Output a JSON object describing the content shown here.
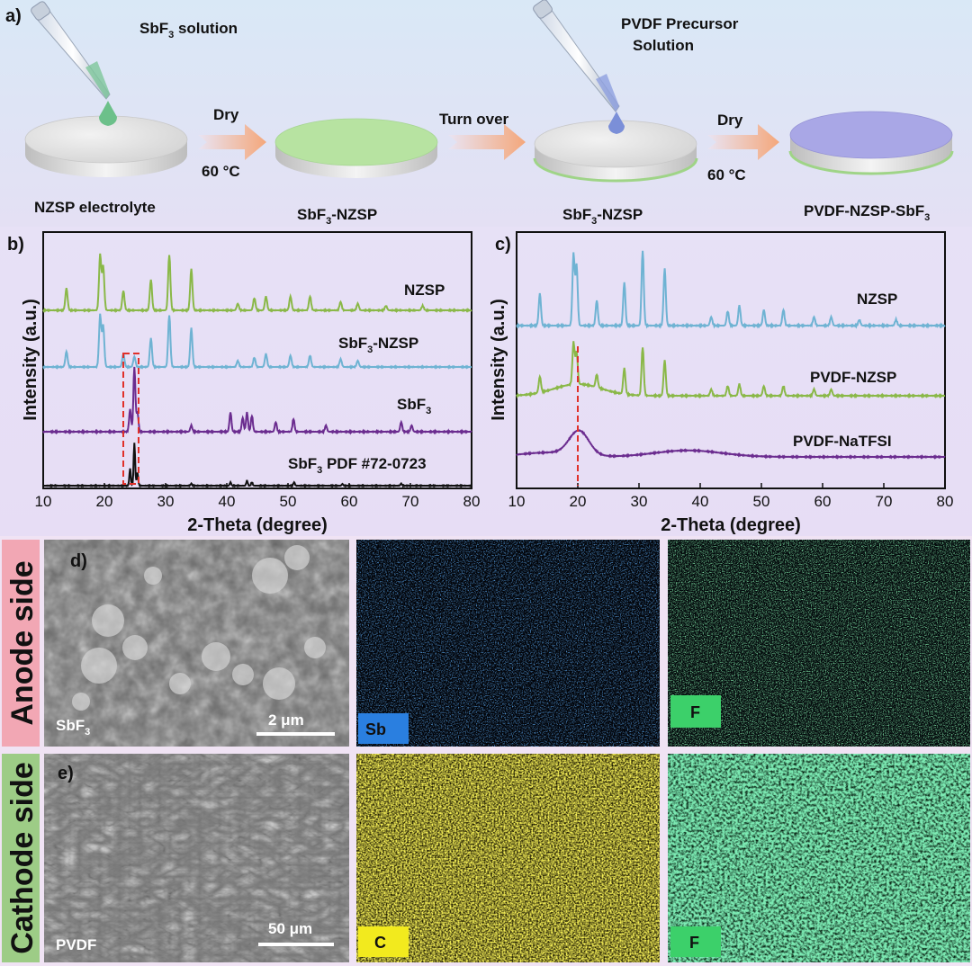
{
  "panel_a": {
    "label": "a)",
    "sbf3_solution": "SbF",
    "sbf3_solution_rest": " solution",
    "dry1": "Dry",
    "temp1": "60 °C",
    "turn_over": "Turn over",
    "pvdf_precursor_line1": "PVDF Precursor",
    "pvdf_precursor_line2": "Solution",
    "dry2": "Dry",
    "temp2": "60 °C",
    "nzsp_electrolyte": "NZSP electrolyte",
    "disc2_label": "SbF",
    "disc2_label_rest": "-NZSP",
    "disc3_label": "SbF",
    "disc3_label_rest": "-NZSP",
    "disc4_label": "PVDF-NZSP-SbF",
    "sub3": "3",
    "colors": {
      "disc_top": "#e4e4e4",
      "sbf3_coat": "#b7e3a1",
      "pvdf_coat": "#a9a7e6",
      "arrow": "#f2b38e",
      "drop_green": "#6cc08a",
      "drop_blue": "#7b8fd8"
    }
  },
  "chart_b": {
    "label": "b)",
    "ylabel": "Intensity (a.u.)",
    "xlabel": "2-Theta (degree)",
    "xticks": [
      "10",
      "20",
      "30",
      "40",
      "50",
      "60",
      "70",
      "80"
    ],
    "series_labels": [
      "NZSP",
      "SbF",
      "SbF",
      "SbF"
    ],
    "series_label_rest": [
      "",
      "-NZSP",
      "",
      " PDF #72-0723"
    ],
    "colors": [
      "#8ab848",
      "#6fb3d3",
      "#6b2c8f",
      "#111111"
    ]
  },
  "chart_c": {
    "label": "c)",
    "ylabel": "Intensity (a.u.)",
    "xlabel": "2-Theta (degree)",
    "xticks": [
      "10",
      "20",
      "30",
      "40",
      "50",
      "60",
      "70",
      "80"
    ],
    "series_labels": [
      "NZSP",
      "PVDF-NZSP",
      "PVDF-NaTFSI"
    ],
    "colors": [
      "#6fb3d3",
      "#8ab848",
      "#6b2c8f"
    ]
  },
  "chart_data": [
    {
      "type": "line",
      "xlim": [
        10,
        80
      ],
      "xlabel": "2-Theta (degree)",
      "ylabel": "Intensity (a.u.)",
      "series": [
        {
          "name": "NZSP",
          "peaks": [
            [
              13.8,
              0.4
            ],
            [
              19.3,
              1.0
            ],
            [
              19.8,
              0.8
            ],
            [
              23.1,
              0.35
            ],
            [
              27.6,
              0.55
            ],
            [
              30.6,
              1.0
            ],
            [
              34.2,
              0.75
            ],
            [
              41.8,
              0.12
            ],
            [
              44.5,
              0.22
            ],
            [
              46.4,
              0.25
            ],
            [
              50.4,
              0.25
            ],
            [
              53.6,
              0.25
            ],
            [
              58.6,
              0.15
            ],
            [
              61.4,
              0.12
            ],
            [
              66.0,
              0.08
            ],
            [
              72.0,
              0.08
            ]
          ]
        },
        {
          "name": "SbF3-NZSP",
          "peaks": [
            [
              13.8,
              0.3
            ],
            [
              19.3,
              1.0
            ],
            [
              19.8,
              0.8
            ],
            [
              23.1,
              0.25
            ],
            [
              24.9,
              0.2
            ],
            [
              27.6,
              0.55
            ],
            [
              30.6,
              1.0
            ],
            [
              34.2,
              0.75
            ],
            [
              41.8,
              0.12
            ],
            [
              44.5,
              0.18
            ],
            [
              46.4,
              0.25
            ],
            [
              50.4,
              0.22
            ],
            [
              53.6,
              0.22
            ],
            [
              58.6,
              0.15
            ],
            [
              61.4,
              0.12
            ]
          ]
        },
        {
          "name": "SbF3",
          "peaks": [
            [
              24.2,
              0.35
            ],
            [
              24.9,
              1.0
            ],
            [
              25.4,
              0.3
            ],
            [
              34.2,
              0.1
            ],
            [
              40.6,
              0.3
            ],
            [
              42.6,
              0.22
            ],
            [
              43.3,
              0.3
            ],
            [
              44.1,
              0.25
            ],
            [
              48.0,
              0.15
            ],
            [
              50.9,
              0.2
            ],
            [
              56.2,
              0.1
            ],
            [
              68.5,
              0.15
            ],
            [
              70.2,
              0.1
            ]
          ]
        },
        {
          "name": "SbF3 PDF #72-0723",
          "peaks": [
            [
              24.2,
              0.4
            ],
            [
              24.9,
              1.0
            ],
            [
              25.4,
              0.3
            ],
            [
              34.2,
              0.05
            ],
            [
              40.6,
              0.08
            ],
            [
              43.3,
              0.12
            ],
            [
              44.1,
              0.08
            ],
            [
              51.0,
              0.08
            ],
            [
              58.9,
              0.04
            ],
            [
              68.5,
              0.05
            ]
          ]
        }
      ]
    },
    {
      "type": "line",
      "xlim": [
        10,
        80
      ],
      "xlabel": "2-Theta (degree)",
      "ylabel": "Intensity (a.u.)",
      "series": [
        {
          "name": "NZSP",
          "peaks": [
            [
              13.8,
              0.45
            ],
            [
              19.3,
              1.0
            ],
            [
              19.8,
              0.85
            ],
            [
              23.1,
              0.35
            ],
            [
              27.6,
              0.6
            ],
            [
              30.6,
              1.05
            ],
            [
              34.2,
              0.8
            ],
            [
              41.8,
              0.12
            ],
            [
              44.5,
              0.2
            ],
            [
              46.4,
              0.28
            ],
            [
              50.4,
              0.22
            ],
            [
              53.6,
              0.22
            ],
            [
              58.6,
              0.12
            ],
            [
              61.4,
              0.12
            ],
            [
              66.0,
              0.08
            ],
            [
              72.0,
              0.08
            ]
          ]
        },
        {
          "name": "PVDF-NZSP",
          "peaks": [
            [
              13.8,
              0.25
            ],
            [
              19.3,
              0.65
            ],
            [
              19.8,
              0.5
            ],
            [
              23.1,
              0.2
            ],
            [
              27.6,
              0.4
            ],
            [
              30.6,
              0.75
            ],
            [
              34.2,
              0.55
            ],
            [
              41.8,
              0.1
            ],
            [
              44.5,
              0.15
            ],
            [
              46.4,
              0.18
            ],
            [
              50.4,
              0.15
            ],
            [
              53.6,
              0.15
            ],
            [
              58.6,
              0.1
            ],
            [
              61.4,
              0.1
            ]
          ]
        },
        {
          "name": "PVDF-NaTFSI",
          "peaks": [
            [
              20.2,
              0.45
            ]
          ]
        }
      ]
    }
  ],
  "panel_d": {
    "label": "d)",
    "side": "Anode side",
    "img1_label": "SbF",
    "scale": "2 μm",
    "img2_label": "Sb",
    "img3_label": "F"
  },
  "panel_e": {
    "label": "e)",
    "side": "Cathode side",
    "img1_label": "PVDF",
    "scale": "50 μm",
    "img2_label": "C",
    "img3_label": "F"
  }
}
